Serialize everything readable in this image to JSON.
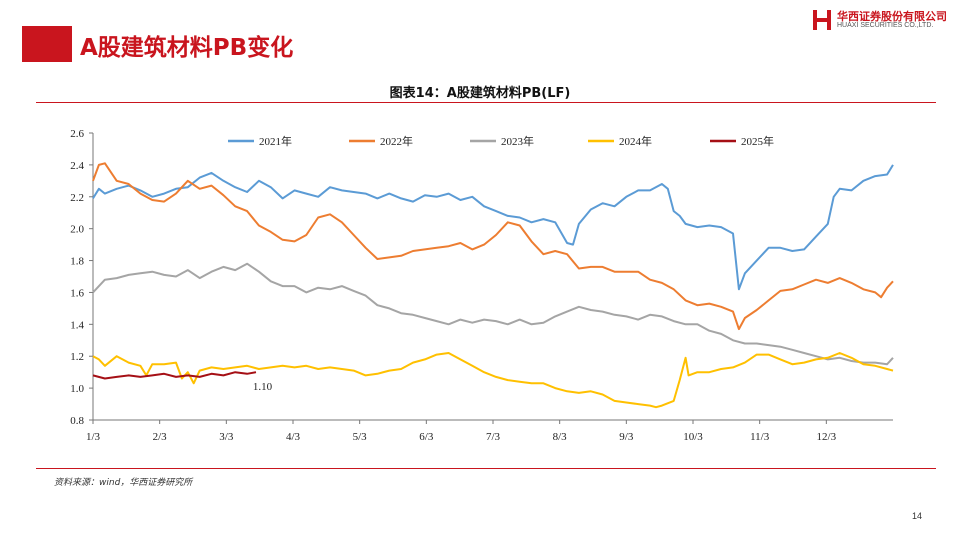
{
  "page": {
    "title": "A股建筑材料PB变化",
    "page_number": "14",
    "brand_color": "#c9151e"
  },
  "logo": {
    "cn": "华西证券股份有限公司",
    "en": "HUAXI SECURITIES CO.,LTD."
  },
  "source": "资料来源：wind，华西证券研究所",
  "chart_data": {
    "type": "line",
    "title": "图表14：A股建筑材料PB(LF)",
    "xlabel": "",
    "ylabel": "",
    "x_ticks": [
      "1/3",
      "2/3",
      "3/3",
      "4/3",
      "5/3",
      "6/3",
      "7/3",
      "8/3",
      "9/3",
      "10/3",
      "11/3",
      "12/3"
    ],
    "ylim": [
      0.8,
      2.6
    ],
    "y_ticks": [
      "0.8",
      "1.0",
      "1.2",
      "1.4",
      "1.6",
      "1.8",
      "2.0",
      "2.2",
      "2.4",
      "2.6"
    ],
    "grid": false,
    "legend_position": "top",
    "annotation": {
      "text": "1.10",
      "series": "2025年",
      "x": 2.85,
      "y": 1.1
    },
    "series": [
      {
        "name": "2021年",
        "color": "#5b9bd5",
        "points": [
          [
            0,
            2.19
          ],
          [
            0.1,
            2.25
          ],
          [
            0.2,
            2.22
          ],
          [
            0.4,
            2.25
          ],
          [
            0.6,
            2.27
          ],
          [
            0.8,
            2.24
          ],
          [
            1.0,
            2.2
          ],
          [
            1.2,
            2.22
          ],
          [
            1.4,
            2.25
          ],
          [
            1.6,
            2.26
          ],
          [
            1.8,
            2.32
          ],
          [
            2.0,
            2.35
          ],
          [
            2.2,
            2.3
          ],
          [
            2.4,
            2.26
          ],
          [
            2.6,
            2.23
          ],
          [
            2.8,
            2.3
          ],
          [
            3.0,
            2.26
          ],
          [
            3.2,
            2.19
          ],
          [
            3.4,
            2.24
          ],
          [
            3.6,
            2.22
          ],
          [
            3.8,
            2.2
          ],
          [
            4.0,
            2.26
          ],
          [
            4.2,
            2.24
          ],
          [
            4.4,
            2.23
          ],
          [
            4.6,
            2.22
          ],
          [
            4.8,
            2.19
          ],
          [
            5.0,
            2.22
          ],
          [
            5.2,
            2.19
          ],
          [
            5.4,
            2.17
          ],
          [
            5.6,
            2.21
          ],
          [
            5.8,
            2.2
          ],
          [
            6.0,
            2.22
          ],
          [
            6.2,
            2.18
          ],
          [
            6.4,
            2.2
          ],
          [
            6.6,
            2.14
          ],
          [
            6.8,
            2.11
          ],
          [
            7.0,
            2.08
          ],
          [
            7.2,
            2.07
          ],
          [
            7.4,
            2.04
          ],
          [
            7.6,
            2.06
          ],
          [
            7.8,
            2.04
          ],
          [
            8.0,
            1.91
          ],
          [
            8.1,
            1.9
          ],
          [
            8.2,
            2.03
          ],
          [
            8.4,
            2.12
          ],
          [
            8.6,
            2.16
          ],
          [
            8.8,
            2.14
          ],
          [
            9.0,
            2.2
          ],
          [
            9.2,
            2.24
          ],
          [
            9.4,
            2.24
          ],
          [
            9.6,
            2.28
          ],
          [
            9.7,
            2.25
          ],
          [
            9.8,
            2.11
          ],
          [
            9.9,
            2.08
          ],
          [
            10.0,
            2.03
          ],
          [
            10.2,
            2.01
          ],
          [
            10.4,
            2.02
          ],
          [
            10.6,
            2.01
          ],
          [
            10.8,
            1.97
          ],
          [
            10.9,
            1.62
          ],
          [
            11.0,
            1.72
          ],
          [
            11.2,
            1.8
          ],
          [
            11.4,
            1.88
          ],
          [
            11.6,
            1.88
          ],
          [
            11.8,
            1.86
          ],
          [
            12.0,
            1.87
          ],
          [
            12.2,
            1.95
          ],
          [
            12.4,
            2.03
          ],
          [
            12.5,
            2.2
          ],
          [
            12.6,
            2.25
          ],
          [
            12.8,
            2.24
          ],
          [
            13.0,
            2.3
          ],
          [
            13.2,
            2.33
          ],
          [
            13.4,
            2.34
          ],
          [
            13.5,
            2.4
          ]
        ]
      },
      {
        "name": "2022年",
        "color": "#ed7d31",
        "points": [
          [
            0,
            2.3
          ],
          [
            0.1,
            2.4
          ],
          [
            0.2,
            2.41
          ],
          [
            0.4,
            2.3
          ],
          [
            0.6,
            2.28
          ],
          [
            0.8,
            2.22
          ],
          [
            1.0,
            2.18
          ],
          [
            1.2,
            2.17
          ],
          [
            1.4,
            2.22
          ],
          [
            1.6,
            2.3
          ],
          [
            1.8,
            2.25
          ],
          [
            2.0,
            2.27
          ],
          [
            2.2,
            2.21
          ],
          [
            2.4,
            2.14
          ],
          [
            2.6,
            2.11
          ],
          [
            2.8,
            2.02
          ],
          [
            3.0,
            1.98
          ],
          [
            3.2,
            1.93
          ],
          [
            3.4,
            1.92
          ],
          [
            3.6,
            1.96
          ],
          [
            3.8,
            2.07
          ],
          [
            4.0,
            2.09
          ],
          [
            4.2,
            2.04
          ],
          [
            4.4,
            1.96
          ],
          [
            4.6,
            1.88
          ],
          [
            4.8,
            1.81
          ],
          [
            5.0,
            1.82
          ],
          [
            5.2,
            1.83
          ],
          [
            5.4,
            1.86
          ],
          [
            5.6,
            1.87
          ],
          [
            5.8,
            1.88
          ],
          [
            6.0,
            1.89
          ],
          [
            6.2,
            1.91
          ],
          [
            6.4,
            1.87
          ],
          [
            6.6,
            1.9
          ],
          [
            6.8,
            1.96
          ],
          [
            7.0,
            2.04
          ],
          [
            7.2,
            2.02
          ],
          [
            7.4,
            1.92
          ],
          [
            7.6,
            1.84
          ],
          [
            7.8,
            1.86
          ],
          [
            8.0,
            1.84
          ],
          [
            8.2,
            1.75
          ],
          [
            8.4,
            1.76
          ],
          [
            8.6,
            1.76
          ],
          [
            8.8,
            1.73
          ],
          [
            9.0,
            1.73
          ],
          [
            9.2,
            1.73
          ],
          [
            9.4,
            1.68
          ],
          [
            9.6,
            1.66
          ],
          [
            9.8,
            1.62
          ],
          [
            10.0,
            1.55
          ],
          [
            10.2,
            1.52
          ],
          [
            10.4,
            1.53
          ],
          [
            10.6,
            1.51
          ],
          [
            10.8,
            1.48
          ],
          [
            10.9,
            1.37
          ],
          [
            11.0,
            1.44
          ],
          [
            11.2,
            1.49
          ],
          [
            11.4,
            1.55
          ],
          [
            11.6,
            1.61
          ],
          [
            11.8,
            1.62
          ],
          [
            12.0,
            1.65
          ],
          [
            12.2,
            1.68
          ],
          [
            12.4,
            1.66
          ],
          [
            12.6,
            1.69
          ],
          [
            12.8,
            1.66
          ],
          [
            13.0,
            1.62
          ],
          [
            13.2,
            1.6
          ],
          [
            13.3,
            1.57
          ],
          [
            13.4,
            1.63
          ],
          [
            13.5,
            1.67
          ]
        ]
      },
      {
        "name": "2023年",
        "color": "#a5a5a5",
        "points": [
          [
            0,
            1.6
          ],
          [
            0.2,
            1.68
          ],
          [
            0.4,
            1.69
          ],
          [
            0.6,
            1.71
          ],
          [
            0.8,
            1.72
          ],
          [
            1.0,
            1.73
          ],
          [
            1.2,
            1.71
          ],
          [
            1.4,
            1.7
          ],
          [
            1.6,
            1.74
          ],
          [
            1.8,
            1.69
          ],
          [
            2.0,
            1.73
          ],
          [
            2.2,
            1.76
          ],
          [
            2.4,
            1.74
          ],
          [
            2.6,
            1.78
          ],
          [
            2.8,
            1.73
          ],
          [
            3.0,
            1.67
          ],
          [
            3.2,
            1.64
          ],
          [
            3.4,
            1.64
          ],
          [
            3.6,
            1.6
          ],
          [
            3.8,
            1.63
          ],
          [
            4.0,
            1.62
          ],
          [
            4.2,
            1.64
          ],
          [
            4.4,
            1.61
          ],
          [
            4.6,
            1.58
          ],
          [
            4.8,
            1.52
          ],
          [
            5.0,
            1.5
          ],
          [
            5.2,
            1.47
          ],
          [
            5.4,
            1.46
          ],
          [
            5.6,
            1.44
          ],
          [
            5.8,
            1.42
          ],
          [
            6.0,
            1.4
          ],
          [
            6.2,
            1.43
          ],
          [
            6.4,
            1.41
          ],
          [
            6.6,
            1.43
          ],
          [
            6.8,
            1.42
          ],
          [
            7.0,
            1.4
          ],
          [
            7.2,
            1.43
          ],
          [
            7.4,
            1.4
          ],
          [
            7.6,
            1.41
          ],
          [
            7.8,
            1.45
          ],
          [
            8.0,
            1.48
          ],
          [
            8.2,
            1.51
          ],
          [
            8.4,
            1.49
          ],
          [
            8.6,
            1.48
          ],
          [
            8.8,
            1.46
          ],
          [
            9.0,
            1.45
          ],
          [
            9.2,
            1.43
          ],
          [
            9.4,
            1.46
          ],
          [
            9.6,
            1.45
          ],
          [
            9.8,
            1.42
          ],
          [
            10.0,
            1.4
          ],
          [
            10.2,
            1.4
          ],
          [
            10.4,
            1.36
          ],
          [
            10.6,
            1.34
          ],
          [
            10.8,
            1.3
          ],
          [
            11.0,
            1.28
          ],
          [
            11.2,
            1.28
          ],
          [
            11.4,
            1.27
          ],
          [
            11.6,
            1.26
          ],
          [
            11.8,
            1.24
          ],
          [
            12.0,
            1.22
          ],
          [
            12.2,
            1.2
          ],
          [
            12.4,
            1.18
          ],
          [
            12.6,
            1.19
          ],
          [
            12.8,
            1.17
          ],
          [
            13.0,
            1.16
          ],
          [
            13.2,
            1.16
          ],
          [
            13.4,
            1.15
          ],
          [
            13.5,
            1.19
          ]
        ]
      },
      {
        "name": "2024年",
        "color": "#ffc000",
        "points": [
          [
            0,
            1.2
          ],
          [
            0.1,
            1.18
          ],
          [
            0.2,
            1.14
          ],
          [
            0.4,
            1.2
          ],
          [
            0.6,
            1.16
          ],
          [
            0.8,
            1.14
          ],
          [
            0.9,
            1.08
          ],
          [
            1.0,
            1.15
          ],
          [
            1.2,
            1.15
          ],
          [
            1.4,
            1.16
          ],
          [
            1.5,
            1.06
          ],
          [
            1.6,
            1.1
          ],
          [
            1.7,
            1.03
          ],
          [
            1.8,
            1.11
          ],
          [
            2.0,
            1.13
          ],
          [
            2.2,
            1.12
          ],
          [
            2.4,
            1.13
          ],
          [
            2.6,
            1.14
          ],
          [
            2.8,
            1.12
          ],
          [
            3.0,
            1.13
          ],
          [
            3.2,
            1.14
          ],
          [
            3.4,
            1.13
          ],
          [
            3.6,
            1.14
          ],
          [
            3.8,
            1.12
          ],
          [
            4.0,
            1.13
          ],
          [
            4.2,
            1.12
          ],
          [
            4.4,
            1.11
          ],
          [
            4.6,
            1.08
          ],
          [
            4.8,
            1.09
          ],
          [
            5.0,
            1.11
          ],
          [
            5.2,
            1.12
          ],
          [
            5.4,
            1.16
          ],
          [
            5.6,
            1.18
          ],
          [
            5.8,
            1.21
          ],
          [
            6.0,
            1.22
          ],
          [
            6.2,
            1.18
          ],
          [
            6.4,
            1.14
          ],
          [
            6.6,
            1.1
          ],
          [
            6.8,
            1.07
          ],
          [
            7.0,
            1.05
          ],
          [
            7.2,
            1.04
          ],
          [
            7.4,
            1.03
          ],
          [
            7.6,
            1.03
          ],
          [
            7.8,
            1.0
          ],
          [
            8.0,
            0.98
          ],
          [
            8.2,
            0.97
          ],
          [
            8.4,
            0.98
          ],
          [
            8.6,
            0.96
          ],
          [
            8.8,
            0.92
          ],
          [
            9.0,
            0.91
          ],
          [
            9.2,
            0.9
          ],
          [
            9.4,
            0.89
          ],
          [
            9.5,
            0.88
          ],
          [
            9.6,
            0.89
          ],
          [
            9.8,
            0.92
          ],
          [
            9.9,
            1.05
          ],
          [
            10.0,
            1.19
          ],
          [
            10.05,
            1.08
          ],
          [
            10.2,
            1.1
          ],
          [
            10.4,
            1.1
          ],
          [
            10.6,
            1.12
          ],
          [
            10.8,
            1.13
          ],
          [
            11.0,
            1.16
          ],
          [
            11.2,
            1.21
          ],
          [
            11.4,
            1.21
          ],
          [
            11.6,
            1.18
          ],
          [
            11.8,
            1.15
          ],
          [
            12.0,
            1.16
          ],
          [
            12.2,
            1.18
          ],
          [
            12.4,
            1.19
          ],
          [
            12.6,
            1.22
          ],
          [
            12.8,
            1.19
          ],
          [
            13.0,
            1.15
          ],
          [
            13.2,
            1.14
          ],
          [
            13.4,
            1.12
          ],
          [
            13.5,
            1.11
          ]
        ]
      },
      {
        "name": "2025年",
        "color": "#a50f15",
        "points": [
          [
            0,
            1.08
          ],
          [
            0.2,
            1.06
          ],
          [
            0.4,
            1.07
          ],
          [
            0.6,
            1.08
          ],
          [
            0.8,
            1.07
          ],
          [
            1.0,
            1.08
          ],
          [
            1.2,
            1.09
          ],
          [
            1.4,
            1.07
          ],
          [
            1.6,
            1.08
          ],
          [
            1.8,
            1.07
          ],
          [
            2.0,
            1.09
          ],
          [
            2.2,
            1.08
          ],
          [
            2.4,
            1.1
          ],
          [
            2.6,
            1.09
          ],
          [
            2.75,
            1.1
          ]
        ]
      }
    ]
  }
}
